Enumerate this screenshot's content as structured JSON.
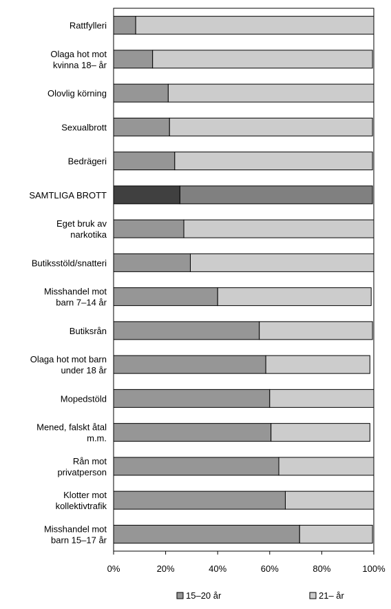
{
  "chart_data": {
    "type": "stacked_barh",
    "categories": [
      "Rattfylleri",
      "Olaga hot mot\nkvinna 18– år",
      "Olovlig körning",
      "Sexualbrott",
      "Bedrägeri",
      "SAMTLIGA BROTT",
      "Eget bruk av\nnarkotika",
      "Butiksstöld/snatteri",
      "Misshandel mot\nbarn 7–14 år",
      "Butiksrån",
      "Olaga hot mot barn\nunder 18 år",
      "Mopedstöld",
      "Mened, falskt åtal\nm.m.",
      "Rån mot\nprivatperson",
      "Klotter mot\nkollektivtrafik",
      "Misshandel mot\nbarn 15–17 år"
    ],
    "series": [
      {
        "name": "15–20 år",
        "color": "#969696",
        "values": [
          8.5,
          15,
          21,
          21.5,
          23.5,
          25.5,
          27,
          29.5,
          40,
          56,
          58.5,
          60,
          60.5,
          63.5,
          66,
          71.5
        ]
      },
      {
        "name": "21– år",
        "color": "#cccccc",
        "values": [
          91.5,
          84.5,
          79,
          78,
          76,
          74,
          73,
          70.5,
          59,
          43.5,
          40,
          40,
          38,
          36.5,
          34,
          28
        ]
      }
    ],
    "highlight_category": "SAMTLIGA BROTT",
    "highlight_colors": [
      "#404040",
      "#808080"
    ],
    "xlim": [
      0,
      100
    ],
    "xticks": [
      {
        "value": 0,
        "label": "0%"
      },
      {
        "value": 20,
        "label": "20%"
      },
      {
        "value": 40,
        "label": "40%"
      },
      {
        "value": 60,
        "label": "60%"
      },
      {
        "value": 80,
        "label": "80%"
      },
      {
        "value": 100,
        "label": "100%"
      }
    ],
    "legend": "bottom"
  }
}
